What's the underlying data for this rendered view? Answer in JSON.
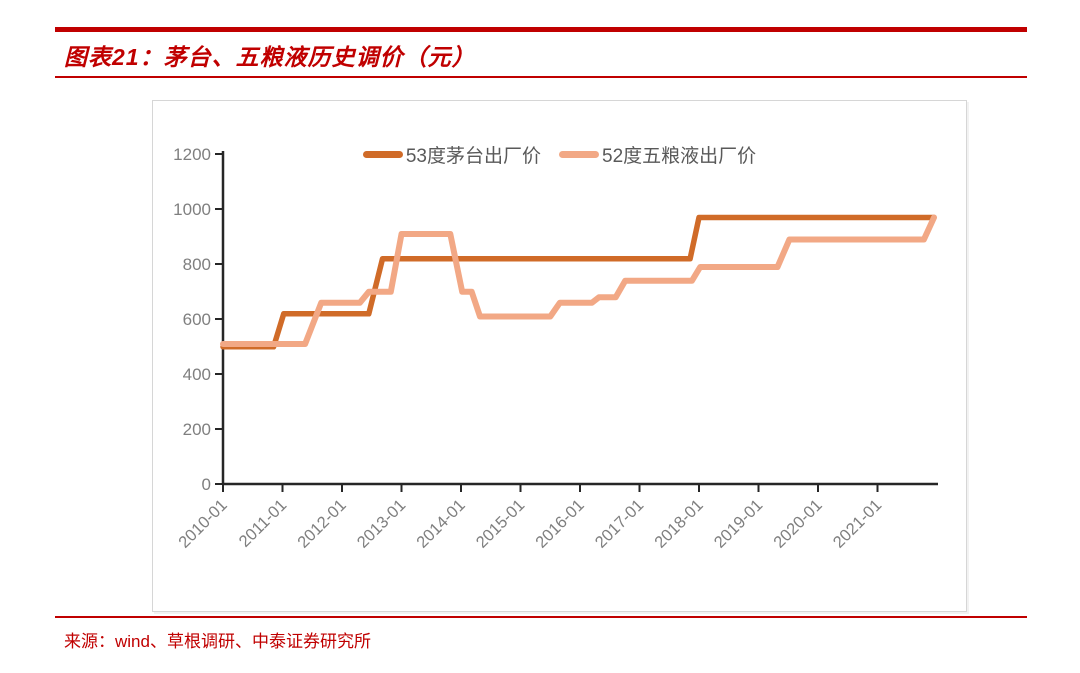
{
  "page": {
    "title": "图表21：茅台、五粮液历史调价（元）",
    "source_prefix": "来源：",
    "source_text": "wind、草根调研、中泰证券研究所",
    "accent_red": "#C00000"
  },
  "chart_data": {
    "type": "line",
    "title": "茅台、五粮液历史调价（元）",
    "unit": "元",
    "ylabel": "",
    "xlabel": "",
    "ylim": [
      0,
      1200
    ],
    "y_ticks": [
      0,
      200,
      400,
      600,
      800,
      1000,
      1200
    ],
    "x_tick_labels": [
      "2010-01",
      "2011-01",
      "2012-01",
      "2013-01",
      "2014-01",
      "2015-01",
      "2016-01",
      "2017-01",
      "2018-01",
      "2019-01",
      "2020-01",
      "2021-01"
    ],
    "x_range_years": [
      2010.0,
      2022.0
    ],
    "grid": false,
    "legend_position": "top-center",
    "axis_color": "#262626",
    "tick_label_color": "#7f7f7f",
    "legend_text_color": "#595959",
    "series": [
      {
        "name": "53度茅台出厂价",
        "color": "#D06B28",
        "stroke_width": 5.5,
        "points": [
          [
            2010.0,
            499
          ],
          [
            2010.85,
            499
          ],
          [
            2011.02,
            619
          ],
          [
            2012.45,
            619
          ],
          [
            2012.68,
            819
          ],
          [
            2017.85,
            819
          ],
          [
            2018.0,
            969
          ],
          [
            2021.95,
            969
          ]
        ]
      },
      {
        "name": "52度五粮液出厂价",
        "color": "#F2A885",
        "stroke_width": 6,
        "points": [
          [
            2010.0,
            509
          ],
          [
            2011.38,
            509
          ],
          [
            2011.65,
            659
          ],
          [
            2012.3,
            659
          ],
          [
            2012.45,
            699
          ],
          [
            2012.82,
            699
          ],
          [
            2013.0,
            909
          ],
          [
            2013.82,
            909
          ],
          [
            2014.02,
            699
          ],
          [
            2014.18,
            699
          ],
          [
            2014.32,
            609
          ],
          [
            2015.5,
            609
          ],
          [
            2015.66,
            659
          ],
          [
            2016.2,
            659
          ],
          [
            2016.32,
            679
          ],
          [
            2016.6,
            679
          ],
          [
            2016.76,
            739
          ],
          [
            2017.88,
            739
          ],
          [
            2018.02,
            789
          ],
          [
            2019.32,
            789
          ],
          [
            2019.52,
            889
          ],
          [
            2021.78,
            889
          ],
          [
            2021.95,
            969
          ]
        ]
      }
    ]
  }
}
